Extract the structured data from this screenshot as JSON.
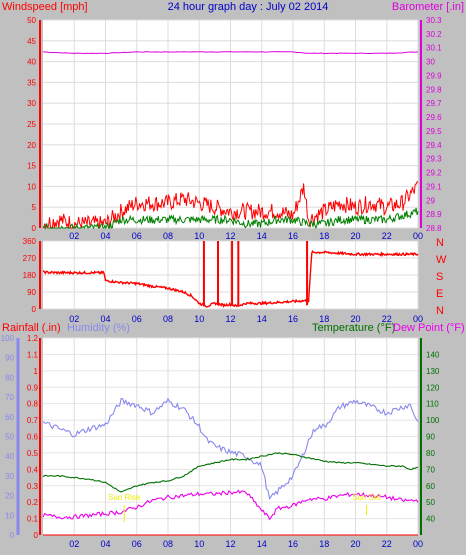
{
  "header": {
    "left": "Windspeed [mph]",
    "center": "24 hour graph day : July 02 2014",
    "right": "Barometer [.in]"
  },
  "bottom_header": {
    "rain": "Rainfall (.in)",
    "humidity": "Humidity (%)",
    "temperature": "Temperature (°F)",
    "dewpoint": "Dew Point (°F)"
  },
  "sun_labels": {
    "sunrise": "Sun Rise",
    "sunset": "Sun Set"
  },
  "colors": {
    "background": "#c0c0c0",
    "plot": "#ffffff",
    "wind_speed": "#ff0000",
    "wind_avg": "#008000",
    "gust_extra": "#00008b",
    "barometer": "#dd00dd",
    "direction": "#ff0000",
    "humidity": "#8888ee",
    "temperature": "#007000",
    "dewpoint": "#ee00ee",
    "rain": "#ff0000",
    "title": "#0000c8",
    "sun": "#eeee00"
  },
  "chart_data": [
    {
      "id": "wind-baro",
      "type": "line",
      "title": "24 hour graph day : July 02 2014",
      "x_ticks": [
        "02",
        "04",
        "06",
        "08",
        "10",
        "12",
        "14",
        "16",
        "18",
        "20",
        "22",
        "00"
      ],
      "y_left": {
        "label": "Windspeed [mph]",
        "min": 0,
        "max": 50,
        "ticks": [
          0,
          5,
          10,
          15,
          20,
          25,
          30,
          35,
          40,
          45,
          50
        ]
      },
      "y_right": {
        "label": "Barometer [.in]",
        "min": 28.8,
        "max": 30.3,
        "ticks": [
          "28.8",
          "28.9",
          "29",
          "29.1",
          "29.2",
          "29.3",
          "29.4",
          "29.5",
          "29.6",
          "29.7",
          "29.8",
          "29.9",
          "30",
          "30.1",
          "30.2",
          "30.3"
        ]
      },
      "series": [
        {
          "name": "Barometer",
          "axis": "right",
          "x": [
            0,
            2,
            4,
            6,
            8,
            10,
            12,
            14,
            16,
            17,
            18,
            20,
            22,
            24
          ],
          "values": [
            30.07,
            30.06,
            30.06,
            30.07,
            30.07,
            30.07,
            30.07,
            30.07,
            30.07,
            30.06,
            30.06,
            30.06,
            30.06,
            30.07
          ]
        },
        {
          "name": "Wind gust",
          "axis": "left",
          "x": [
            0,
            1,
            2,
            3,
            4,
            5,
            6,
            7,
            8,
            9,
            10,
            11,
            12,
            13,
            14,
            15,
            16,
            16.7,
            17,
            18,
            19,
            20,
            21,
            22,
            23,
            24
          ],
          "values": [
            1,
            2,
            1,
            1,
            1,
            4,
            6,
            6,
            6,
            7,
            6,
            5,
            4,
            4,
            4,
            4,
            3,
            10,
            2,
            4,
            6,
            5,
            6,
            5,
            6,
            10
          ]
        },
        {
          "name": "Wind average",
          "axis": "left",
          "x": [
            0,
            2,
            4,
            4.5,
            5,
            6,
            7,
            8,
            9,
            10,
            11,
            12,
            13,
            14,
            15,
            16,
            17,
            18,
            19,
            20,
            21,
            22,
            23,
            24
          ],
          "values": [
            0,
            0,
            0,
            1,
            2,
            2,
            2,
            2,
            2,
            2,
            2,
            2,
            1,
            1,
            2,
            2,
            1,
            1,
            2,
            2,
            2,
            2,
            3,
            4
          ]
        }
      ]
    },
    {
      "id": "wind-direction",
      "type": "line",
      "x_ticks": [
        "02",
        "04",
        "06",
        "08",
        "10",
        "12",
        "14",
        "16",
        "18",
        "20",
        "22",
        "00"
      ],
      "y_left": {
        "min": 0,
        "max": 360,
        "ticks": [
          0,
          90,
          180,
          270,
          360
        ]
      },
      "y_right_labels": [
        "N",
        "W",
        "S",
        "E",
        "N"
      ],
      "series": [
        {
          "name": "Wind direction",
          "x": [
            0,
            1,
            2,
            3,
            3.9,
            4,
            5,
            6,
            7,
            8,
            9,
            9.5,
            10,
            10.5,
            11,
            11.6,
            12,
            12.4,
            13,
            14,
            15,
            16,
            16.9,
            17,
            17.2,
            18,
            20,
            22,
            24
          ],
          "values": [
            195,
            192,
            192,
            192,
            192,
            150,
            140,
            135,
            120,
            110,
            90,
            70,
            30,
            15,
            30,
            20,
            25,
            15,
            30,
            30,
            35,
            40,
            45,
            40,
            300,
            300,
            290,
            290,
            290
          ]
        }
      ]
    },
    {
      "id": "temp-hum-rain",
      "type": "line",
      "x_ticks": [
        "02",
        "04",
        "06",
        "08",
        "10",
        "12",
        "14",
        "16",
        "18",
        "20",
        "22",
        "00"
      ],
      "y_left_rain": {
        "label": "Rainfall (.in)",
        "min": 0,
        "max": 1.2,
        "ticks": [
          "0",
          "0.1",
          "0.2",
          "0.3",
          "0.4",
          "0.5",
          "0.6",
          "0.7",
          "0.8",
          "0.9",
          "1",
          "1.1",
          "1.2"
        ]
      },
      "y_left_humidity": {
        "label": "Humidity (%)",
        "min": 0,
        "max": 100,
        "ticks": [
          0,
          10,
          20,
          30,
          40,
          50,
          60,
          70,
          80,
          90,
          100
        ]
      },
      "y_right": {
        "label": "Temperature (°F)",
        "min": 30,
        "max": 150,
        "ticks": [
          40,
          50,
          60,
          70,
          80,
          90,
          100,
          110,
          120,
          130,
          140
        ]
      },
      "series": [
        {
          "name": "Humidity",
          "axis": "humidity",
          "x": [
            0,
            1,
            2,
            3,
            4,
            5,
            6,
            7,
            8,
            9,
            10,
            10.5,
            11,
            12,
            13,
            14,
            14.5,
            15,
            16,
            16.5,
            17,
            17.5,
            18,
            19,
            20,
            21,
            22,
            23,
            23.5,
            24
          ],
          "values": [
            57,
            54,
            51,
            54,
            56,
            68,
            66,
            62,
            68,
            64,
            55,
            48,
            45,
            42,
            40,
            35,
            18,
            22,
            30,
            38,
            48,
            55,
            55,
            65,
            68,
            65,
            62,
            65,
            66,
            57
          ]
        },
        {
          "name": "Temperature",
          "axis": "right",
          "x": [
            0,
            1,
            2,
            3,
            4,
            5,
            6,
            7,
            8,
            9,
            10,
            11,
            12,
            13,
            14,
            15,
            16,
            17,
            18,
            19,
            20,
            21,
            22,
            23,
            23.5,
            24
          ],
          "values": [
            66,
            66,
            65,
            64,
            62,
            56,
            60,
            62,
            63,
            66,
            72,
            74,
            76,
            76,
            78,
            80,
            79,
            77,
            75,
            74,
            74,
            73,
            72,
            72,
            70,
            71
          ]
        },
        {
          "name": "Dew Point",
          "axis": "right",
          "x": [
            0,
            1,
            2,
            3,
            4,
            5,
            6,
            7,
            8,
            9,
            10,
            11,
            12,
            13,
            14,
            14.5,
            15,
            16,
            17,
            18,
            19,
            20,
            21,
            22,
            23,
            24
          ],
          "values": [
            42,
            41,
            41,
            42,
            43,
            44,
            47,
            51,
            53,
            54,
            55,
            55,
            56,
            56,
            45,
            40,
            46,
            48,
            52,
            52,
            54,
            55,
            54,
            53,
            51,
            51
          ]
        },
        {
          "name": "Rainfall",
          "axis": "rain",
          "x": [
            0,
            24
          ],
          "values": [
            0,
            0
          ]
        }
      ],
      "sunrise_hour": 5.2,
      "sunset_hour": 20.7
    }
  ]
}
